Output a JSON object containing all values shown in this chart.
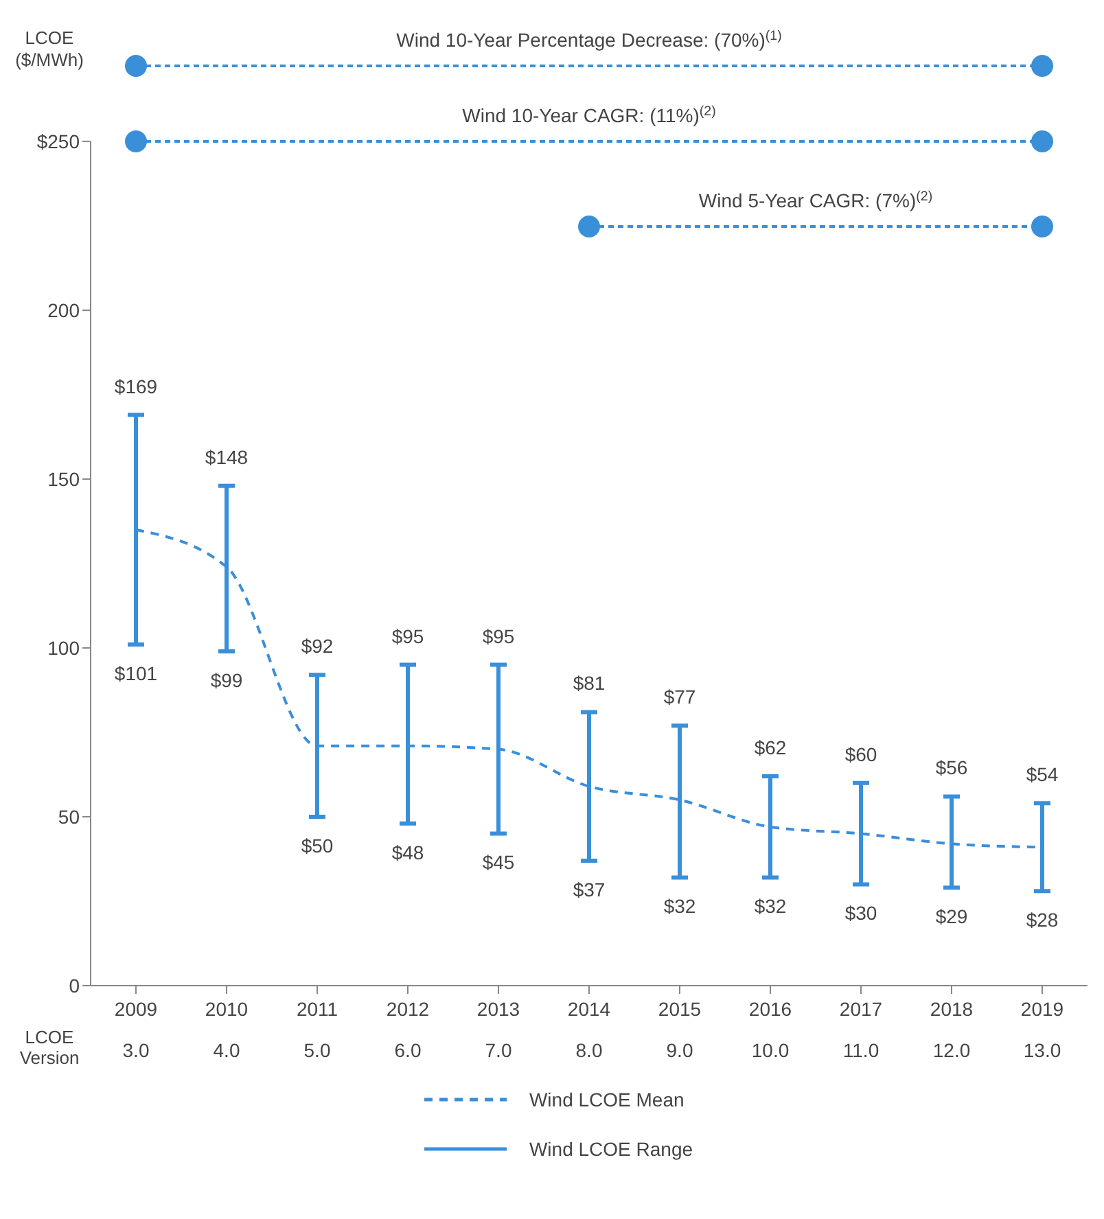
{
  "chart_data": {
    "type": "bar",
    "ylabel": "LCOE ($/MWh)",
    "categories": [
      "2009\n3.0",
      "2010\n4.0",
      "2011\n5.0",
      "2012\n6.0",
      "2013\n7.0",
      "2014\n8.0",
      "2015\n9.0",
      "2016\n10.0",
      "2017\n11.0",
      "2018\n12.0",
      "2019\n13.0"
    ],
    "series": [
      {
        "name": "Wind LCOE Mean",
        "type": "line",
        "color": "#3a8fd9",
        "line_style": "dashed",
        "values": [
          135,
          124,
          71,
          71,
          70,
          59,
          55,
          47,
          45,
          42,
          41
        ]
      },
      {
        "name": "Wind LCOE Range",
        "type": "bar",
        "color": "#3a8fd9",
        "base": [
          101,
          99,
          50,
          48,
          45,
          37,
          32,
          32,
          30,
          29,
          28
        ],
        "values": [
          68,
          49,
          42,
          47,
          50,
          44,
          45,
          30,
          30,
          27,
          26
        ]
      }
    ],
    "annotations": [
      "Wind 10-Year Percentage Decrease: (70%)$^{(1)}$",
      "Wind 10-Year CAGR: (11%)$^{(2)}$",
      "Wind 5-Year CAGR: (7%)$^{(2)}$",
      "LCOE Version",
      {
        "text": "$169",
        "x": "2009\n3.0",
        "y": 169
      },
      {
        "text": "$101",
        "x": "2009\n3.0",
        "y": 101
      },
      {
        "text": "$148",
        "x": "2010\n4.0",
        "y": 148
      },
      {
        "text": "$99",
        "x": "2010\n4.0",
        "y": 99
      },
      {
        "text": "$92",
        "x": "2011\n5.0",
        "y": 92
      },
      {
        "text": "$50",
        "x": "2011\n5.0",
        "y": 50
      },
      {
        "text": "$95",
        "x": "2012\n6.0",
        "y": 95
      },
      {
        "text": "$48",
        "x": "2012\n6.0",
        "y": 48
      },
      {
        "text": "$95",
        "x": "2013\n7.0",
        "y": 95
      },
      {
        "text": "$45",
        "x": "2013\n7.0",
        "y": 45
      },
      {
        "text": "$81",
        "x": "2014\n8.0",
        "y": 81
      },
      {
        "text": "$37",
        "x": "2014\n8.0",
        "y": 37
      },
      {
        "text": "$77",
        "x": "2015\n9.0",
        "y": 77
      },
      {
        "text": "$32",
        "x": "2015\n9.0",
        "y": 32
      },
      {
        "text": "$62",
        "x": "2016\n10.0",
        "y": 62
      },
      {
        "text": "$32",
        "x": "2016\n10.0",
        "y": 32
      },
      {
        "text": "$60",
        "x": "2017\n11.0",
        "y": 60
      },
      {
        "text": "$30",
        "x": "2017\n11.0",
        "y": 30
      },
      {
        "text": "$56",
        "x": "2018\n12.0",
        "y": 56
      },
      {
        "text": "$29",
        "x": "2018\n12.0",
        "y": 29
      },
      {
        "text": "$54",
        "x": "2019\n13.0",
        "y": 54
      },
      {
        "text": "$28",
        "x": "2019\n13.0",
        "y": 28
      }
    ],
    "ylim": [
      0,
      250
    ],
    "yticks": [
      0,
      50,
      100,
      150,
      200,
      {
        "value": 250,
        "label": "$250"
      }
    ],
    "grid": false,
    "legend": "bottom",
    "marker": "none"
  }
}
